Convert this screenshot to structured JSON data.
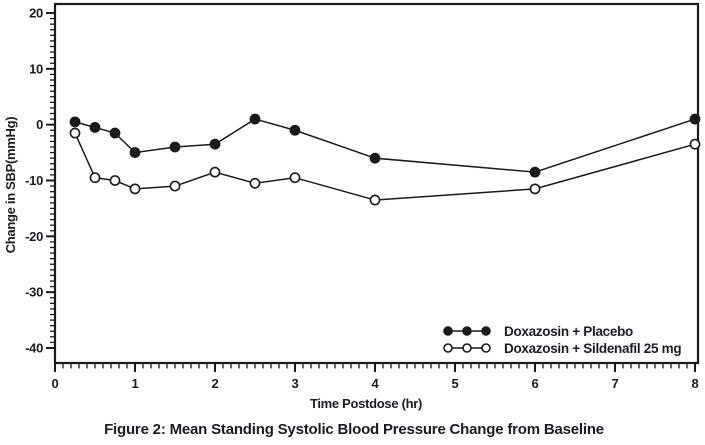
{
  "figure": {
    "caption": "Figure 2: Mean Standing Systolic Blood Pressure Change from Baseline"
  },
  "chart_data": {
    "type": "line",
    "title": "",
    "xlabel": "Time Postdose (hr)",
    "ylabel": "Change in SBP(mmHg)",
    "xlim": [
      0,
      8
    ],
    "ylim": [
      -40,
      20
    ],
    "x_major_ticks": [
      0,
      1,
      2,
      3,
      4,
      5,
      6,
      7,
      8
    ],
    "y_major_ticks": [
      20,
      10,
      0,
      -10,
      -20,
      -30,
      -40
    ],
    "x_minor_step": 0.1,
    "y_minor_step": 1,
    "grid": false,
    "legend_position": "inside-bottom-right",
    "x": [
      0.25,
      0.5,
      0.75,
      1,
      1.5,
      2,
      2.5,
      3,
      4,
      6,
      8
    ],
    "series": [
      {
        "name": "Doxazosin + Placebo",
        "marker": "filled-circle",
        "values": [
          0.5,
          -0.5,
          -1.5,
          -5,
          -4,
          -3.5,
          1,
          -1,
          -6,
          -8.5,
          1
        ]
      },
      {
        "name": "Doxazosin + Sildenafil 25 mg",
        "marker": "open-circle",
        "values": [
          -1.5,
          -9.5,
          -10,
          -11.5,
          -11,
          -8.5,
          -10.5,
          -9.5,
          -13.5,
          -11.5,
          -3.5
        ]
      }
    ]
  },
  "colors": {
    "ink": "#1a1a1a",
    "text": "#1b1b26",
    "background": "#ffffff"
  }
}
